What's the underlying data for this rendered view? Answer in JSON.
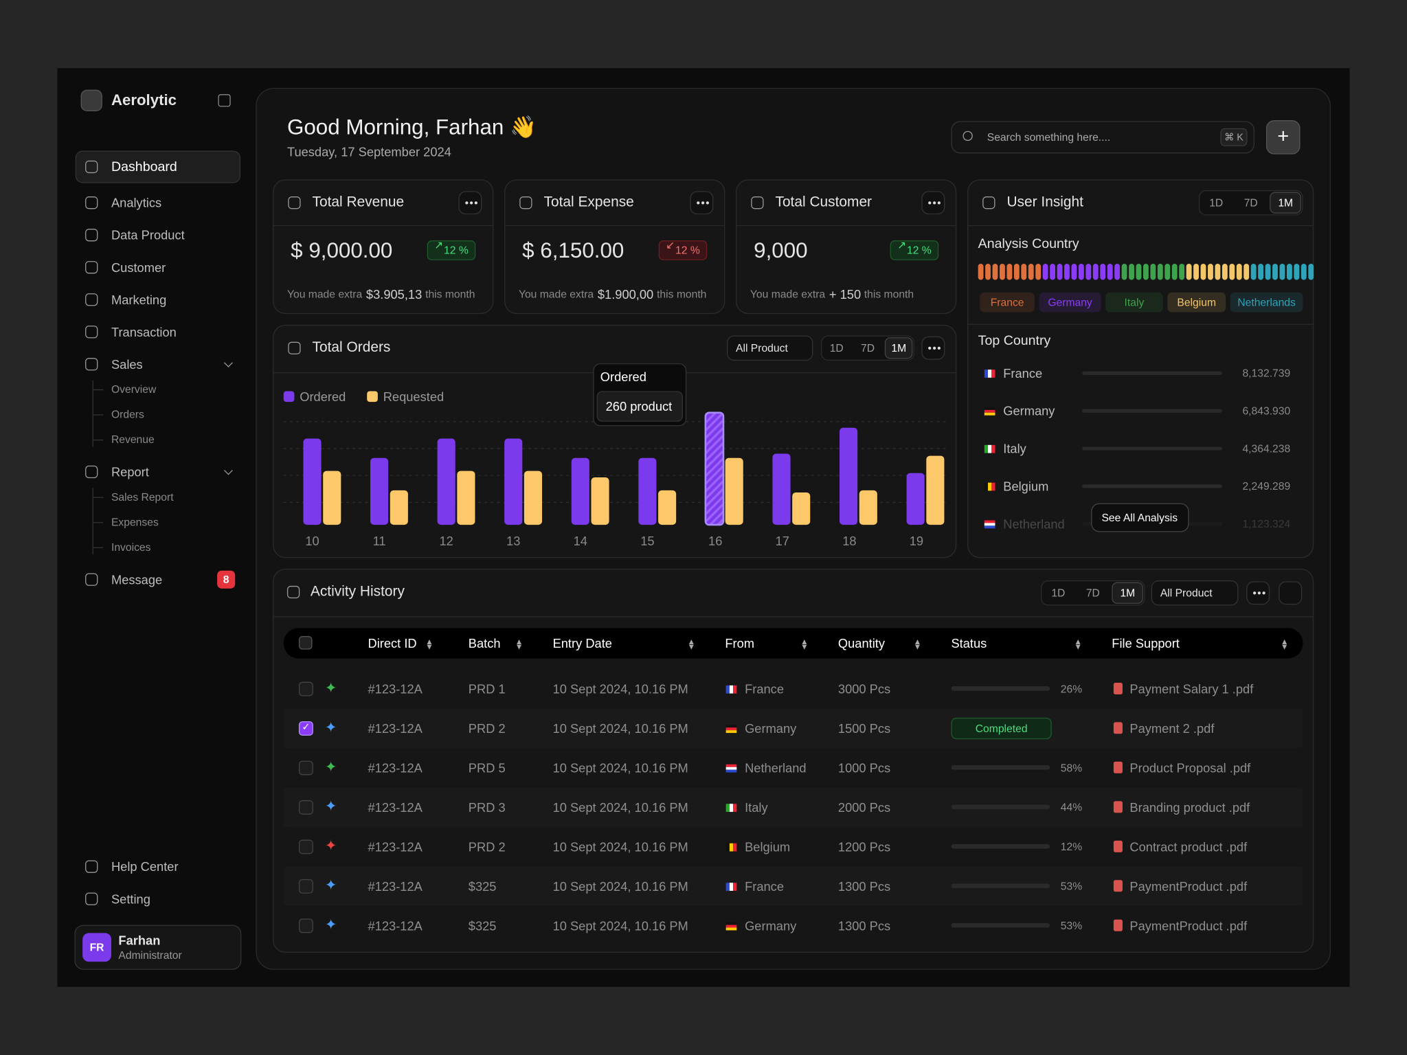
{
  "sidebar": {
    "brand": "Aerolytic",
    "nav": [
      "Dashboard",
      "Analytics",
      "Data Product",
      "Customer",
      "Marketing",
      "Transaction"
    ],
    "active": "Dashboard",
    "sales": {
      "label": "Sales",
      "items": [
        "Overview",
        "Orders",
        "Revenue"
      ]
    },
    "report": {
      "label": "Report",
      "items": [
        "Sales Report",
        "Expenses",
        "Invoices"
      ]
    },
    "message": {
      "label": "Message",
      "badge": "8"
    },
    "footer": [
      "Help Center",
      "Setting"
    ],
    "user": {
      "initials": "FR",
      "name": "Farhan",
      "role": "Administrator"
    }
  },
  "header": {
    "greeting": "Good Morning, Farhan 👋",
    "date": "Tuesday, 17 September 2024",
    "search": "Search something here....",
    "shortcut": "⌘ K"
  },
  "stats": [
    {
      "title": "Total Revenue",
      "value": "$ 9,000.00",
      "change": "12 %",
      "trend": "up",
      "note": "You made extra",
      "note_value": "$3.905,13",
      "note_end": "this month"
    },
    {
      "title": "Total Expense",
      "value": "$ 6,150.00",
      "change": "12 %",
      "trend": "down",
      "note": "You made extra",
      "note_value": "$1.900,00",
      "note_end": "this month"
    },
    {
      "title": "Total Customer",
      "value": "9,000",
      "change": "12 %",
      "trend": "up",
      "note": "You made extra",
      "note_value": "+ 150",
      "note_end": "this month"
    }
  ],
  "periods": [
    "1D",
    "7D",
    "1M"
  ],
  "active_period": "1M",
  "filter": "All Product",
  "chart_data": {
    "type": "bar",
    "title": "Total Orders",
    "categories": [
      "10",
      "11",
      "12",
      "13",
      "14",
      "15",
      "16",
      "17",
      "18",
      "19"
    ],
    "series": [
      {
        "name": "Ordered",
        "color": "#7c3aed",
        "values": [
          200,
          155,
          200,
          200,
          155,
          155,
          260,
          165,
          225,
          120
        ]
      },
      {
        "name": "Requested",
        "color": "#fcc86a",
        "values": [
          125,
          80,
          125,
          125,
          110,
          80,
          155,
          75,
          80,
          160
        ]
      }
    ],
    "tooltip": {
      "category": "16",
      "text": "260 product"
    }
  },
  "user_insight": {
    "title": "User Insight",
    "analysis_title": "Analysis Country",
    "countries": [
      {
        "name": "France",
        "color": "#e0703c",
        "segments": 9
      },
      {
        "name": "Germany",
        "color": "#8b3cf7",
        "segments": 11
      },
      {
        "name": "Italy",
        "color": "#3fa34d",
        "segments": 9
      },
      {
        "name": "Belgium",
        "color": "#f4c66a",
        "segments": 9
      },
      {
        "name": "Netherlands",
        "color": "#2fa3b8",
        "segments": 9
      }
    ],
    "top_title": "Top Country",
    "top_countries": [
      "France",
      "Germany",
      "Italy",
      "Belgium",
      "Netherland"
    ],
    "top_values": [
      8132.739,
      6843.93,
      4364.238,
      2249.289,
      1123.324
    ],
    "top_value_labels": [
      "8,132.739",
      "6,843.930",
      "4,364.238",
      "2,249.289",
      "1,123.324"
    ],
    "top_colors": [
      "#e0703c",
      "#8b3cf7",
      "#3fa34d",
      "#c9a65a",
      "#777777"
    ],
    "button": "See All Analysis"
  },
  "activity": {
    "title": "Activity History",
    "filter": "All Product",
    "columns": [
      "Direct ID",
      "Batch",
      "Entry Date",
      "From",
      "Quantity",
      "Status",
      "File Support"
    ],
    "rows": [
      {
        "star": "#3fb950",
        "checked": false,
        "cells": [
          "#123-12A",
          "PRD 1",
          "10 Sept 2024, 10.16 PM",
          "France",
          "3000 Pcs"
        ],
        "progress": 26,
        "progress_label": "26%",
        "file": "Payment Salary 1 .pdf"
      },
      {
        "star": "#4a9eff",
        "checked": true,
        "cells": [
          "#123-12A",
          "PRD 2",
          "10 Sept 2024, 10.16 PM",
          "Germany",
          "1500 Pcs"
        ],
        "status": "Completed",
        "file": "Payment 2 .pdf"
      },
      {
        "star": "#3fb950",
        "checked": false,
        "cells": [
          "#123-12A",
          "PRD 5",
          "10 Sept 2024, 10.16 PM",
          "Netherland",
          "1000 Pcs"
        ],
        "progress": 58,
        "progress_label": "58%",
        "file": "Product Proposal .pdf"
      },
      {
        "star": "#4a9eff",
        "checked": false,
        "cells": [
          "#123-12A",
          "PRD 3",
          "10 Sept 2024, 10.16 PM",
          "Italy",
          "2000 Pcs"
        ],
        "progress": 44,
        "progress_label": "44%",
        "file": "Branding product .pdf"
      },
      {
        "star": "#ef4444",
        "checked": false,
        "cells": [
          "#123-12A",
          "PRD 2",
          "10 Sept 2024, 10.16 PM",
          "Belgium",
          "1200 Pcs"
        ],
        "progress": 12,
        "progress_label": "12%",
        "file": "Contract product .pdf"
      },
      {
        "star": "#4a9eff",
        "checked": false,
        "cells": [
          "#123-12A",
          "$325",
          "10 Sept 2024, 10.16 PM",
          "France",
          "1300 Pcs"
        ],
        "progress": 53,
        "progress_label": "53%",
        "file": "PaymentProduct .pdf"
      },
      {
        "star": "#4a9eff",
        "checked": false,
        "cells": [
          "#123-12A",
          "$325",
          "10 Sept 2024, 10.16 PM",
          "Germany",
          "1300 Pcs"
        ],
        "progress": 53,
        "progress_label": "53%",
        "file": "PaymentProduct .pdf"
      }
    ]
  }
}
